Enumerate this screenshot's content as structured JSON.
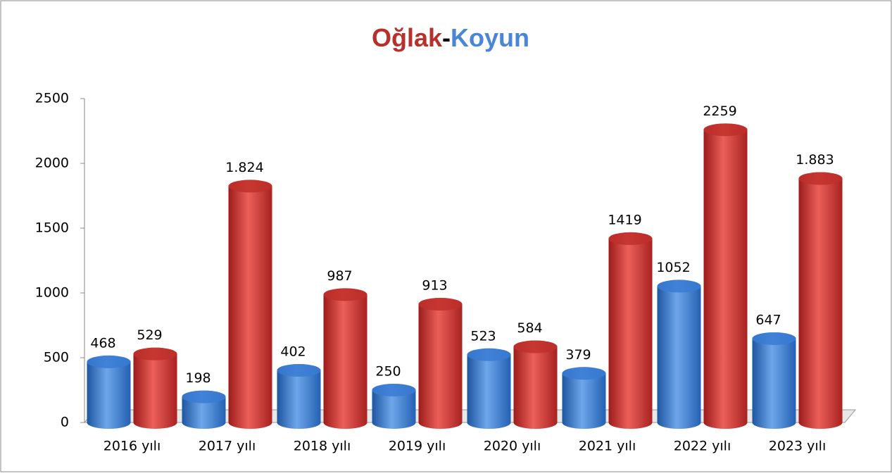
{
  "chart_data": {
    "type": "bar",
    "title_separator": "-",
    "categories": [
      "2016 yılı",
      "2017 yılı",
      "2018 yılı",
      "2019 yılı",
      "2020 yılı",
      "2021 yılı",
      "2022 yılı",
      "2023 yılı"
    ],
    "series": [
      {
        "name": "Koyun",
        "color": "#3a7bd5",
        "values": [
          468,
          198,
          402,
          250,
          523,
          379,
          1052,
          647
        ]
      },
      {
        "name": "Oğlak",
        "color": "#c0302c",
        "values": [
          529,
          1824,
          987,
          913,
          584,
          1419,
          2259,
          1883
        ],
        "value_labels": [
          "529",
          "1.824",
          "987",
          "913",
          "584",
          "1419",
          "2259",
          "1.883"
        ]
      }
    ],
    "ylim": [
      0,
      2500
    ],
    "yticks": [
      0,
      500,
      1000,
      1500,
      2000,
      2500
    ],
    "grid": false
  }
}
